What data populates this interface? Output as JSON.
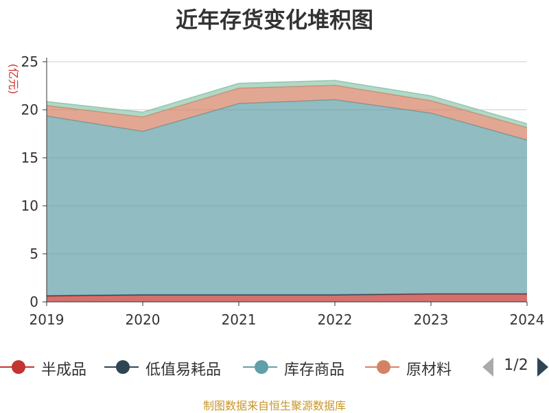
{
  "chart_data": {
    "type": "area",
    "stacked": true,
    "title": "近年存货变化堆积图",
    "unit_label": "(亿元)",
    "x": [
      "2019",
      "2020",
      "2021",
      "2022",
      "2023",
      "2024"
    ],
    "ylim": [
      0,
      25
    ],
    "yticks": [
      0,
      5,
      10,
      15,
      20,
      25
    ],
    "grid": true,
    "series": [
      {
        "name": "半成品",
        "color": "#c23531",
        "values": [
          0.6,
          0.7,
          0.7,
          0.7,
          0.8,
          0.8
        ]
      },
      {
        "name": "低值易耗品",
        "color": "#2f4554",
        "values": [
          0.05,
          0.05,
          0.05,
          0.05,
          0.05,
          0.05
        ]
      },
      {
        "name": "库存商品",
        "color": "#61a0a8",
        "values": [
          18.7,
          17.0,
          19.9,
          20.3,
          18.8,
          16.0
        ]
      },
      {
        "name": "原材料",
        "color": "#d48265",
        "values": [
          1.1,
          1.5,
          1.6,
          1.5,
          1.3,
          1.3
        ]
      },
      {
        "name": "",
        "color": "#91c7ae",
        "values": [
          0.4,
          0.5,
          0.5,
          0.5,
          0.5,
          0.4
        ]
      }
    ],
    "legend_position": "bottom"
  },
  "legend_items": [
    {
      "label": "半成品",
      "color": "#c23531"
    },
    {
      "label": "低值易耗品",
      "color": "#2f4554"
    },
    {
      "label": "库存商品",
      "color": "#61a0a8"
    },
    {
      "label": "原材料",
      "color": "#d48265"
    }
  ],
  "pager": {
    "text": "1/2"
  },
  "source": "制图数据来自恒生聚源数据库"
}
